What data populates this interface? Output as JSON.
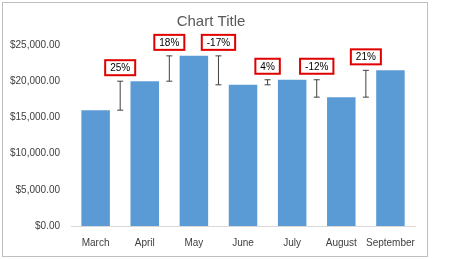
{
  "chart_data": {
    "type": "bar",
    "title": "Chart Title",
    "categories": [
      "March",
      "April",
      "May",
      "June",
      "July",
      "August",
      "September"
    ],
    "values": [
      16000,
      20000,
      23500,
      19500,
      20200,
      17800,
      21500
    ],
    "color": "#5b9bd5",
    "ylim": [
      0,
      25000
    ],
    "yticks": [
      {
        "value": 0,
        "label": "$0.00"
      },
      {
        "value": 5000,
        "label": "$5,000.00"
      },
      {
        "value": 10000,
        "label": "$10,000.00"
      },
      {
        "value": 15000,
        "label": "$15,000.00"
      },
      {
        "value": 20000,
        "label": "$20,000.00"
      },
      {
        "value": 25000,
        "label": "$25,000.00"
      }
    ],
    "grid": false,
    "changes": [
      25,
      18,
      -17,
      4,
      -12,
      21
    ],
    "change_labels": [
      "25%",
      "18%",
      "-17%",
      "4%",
      "-12%",
      "21%"
    ]
  }
}
